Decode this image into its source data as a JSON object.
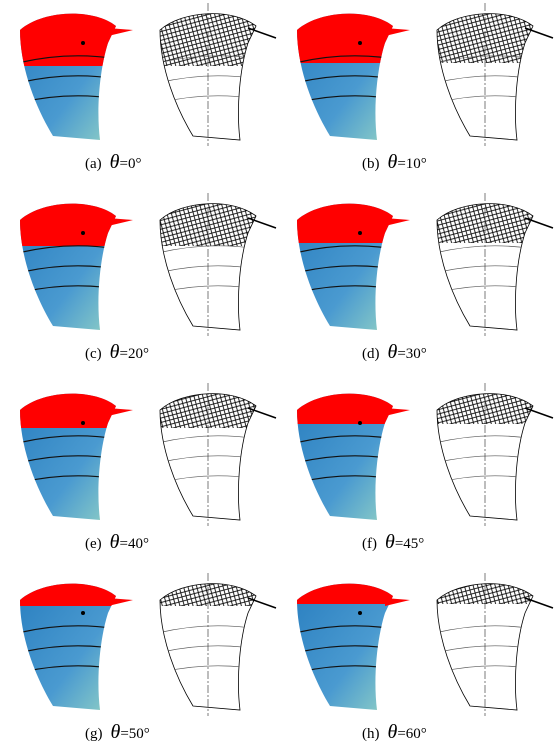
{
  "panels": [
    {
      "label": "(a)",
      "symbol": "θ",
      "angle": "=0°"
    },
    {
      "label": "(b)",
      "symbol": "θ",
      "angle": "=10°"
    },
    {
      "label": "(c)",
      "symbol": "θ",
      "angle": "=20°"
    },
    {
      "label": "(d)",
      "symbol": "θ",
      "angle": "=30°"
    },
    {
      "label": "(e)",
      "symbol": "θ",
      "angle": "=40°"
    },
    {
      "label": "(f)",
      "symbol": "θ",
      "angle": "=45°"
    },
    {
      "label": "(g)",
      "symbol": "θ",
      "angle": "=50°"
    },
    {
      "label": "(h)",
      "symbol": "θ",
      "angle": "=60°"
    }
  ]
}
